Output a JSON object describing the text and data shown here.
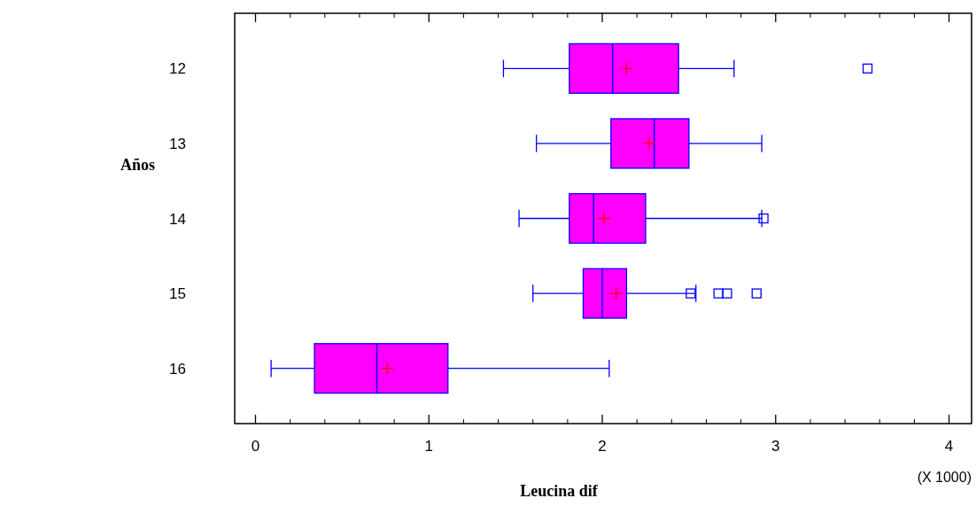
{
  "chart_data": {
    "type": "box",
    "orientation": "horizontal",
    "xlabel": "Leucina dif",
    "ylabel": "Años",
    "categories": [
      "12",
      "13",
      "14",
      "15",
      "16"
    ],
    "xlim": [
      -0.12,
      4.13
    ],
    "xticks": [
      0,
      1,
      2,
      3,
      4
    ],
    "annotations": [
      "(X 1000)"
    ],
    "marker": "square",
    "color": "#ff00ff",
    "grid": false,
    "boxes": [
      {
        "low": 1.43,
        "q1": 1.81,
        "median": 2.06,
        "q3": 2.44,
        "high": 2.76,
        "mean": 2.14,
        "outliers": [
          3.53
        ]
      },
      {
        "low": 1.62,
        "q1": 2.05,
        "median": 2.3,
        "q3": 2.5,
        "high": 2.92,
        "mean": 2.27
      },
      {
        "low": 1.52,
        "q1": 1.81,
        "median": 1.95,
        "q3": 2.25,
        "high": 2.92,
        "mean": 2.01,
        "outliers": [
          2.93
        ]
      },
      {
        "low": 1.6,
        "q1": 1.89,
        "median": 2.0,
        "q3": 2.14,
        "high": 2.54,
        "mean": 2.08,
        "outliers": [
          2.51,
          2.67,
          2.72,
          2.89
        ]
      },
      {
        "low": 0.09,
        "q1": 0.34,
        "median": 0.7,
        "q3": 1.11,
        "high": 2.04,
        "mean": 0.76
      }
    ]
  }
}
